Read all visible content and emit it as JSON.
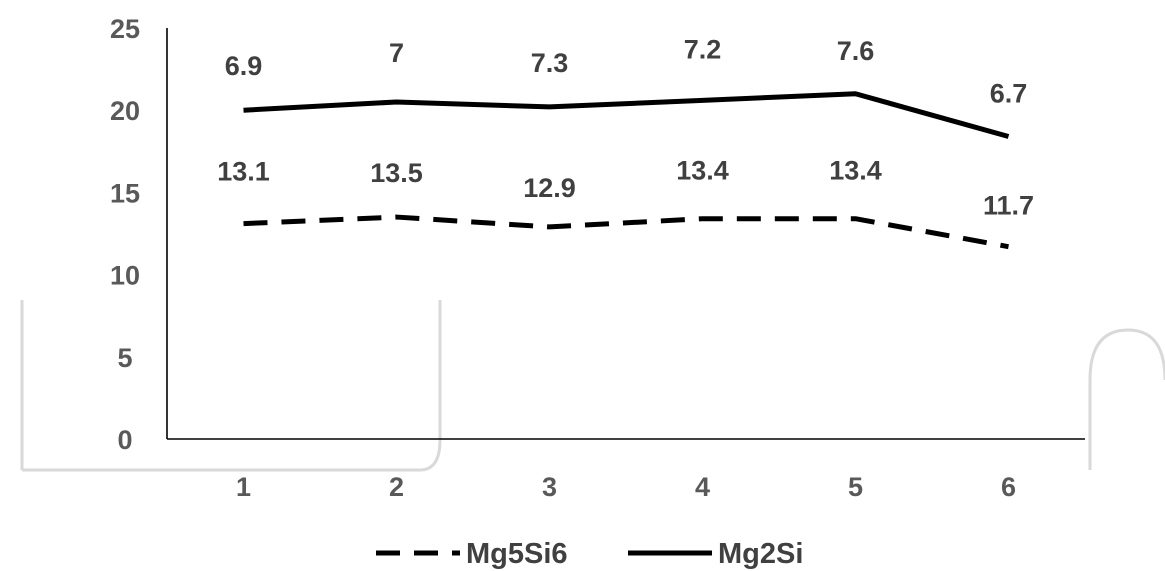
{
  "chart_data": {
    "type": "line",
    "title": "",
    "xlabel": "",
    "ylabel": "",
    "categories": [
      "1",
      "2",
      "3",
      "4",
      "5",
      "6"
    ],
    "ylim": [
      0,
      25
    ],
    "yticks": [
      0,
      5,
      10,
      15,
      20,
      25
    ],
    "grid": false,
    "legend_position": "bottom",
    "series": [
      {
        "name": "Mg5Si6",
        "style": "dashed",
        "color": "#000000",
        "values": [
          13.1,
          13.5,
          12.9,
          13.4,
          13.4,
          11.7
        ],
        "labels": [
          "13.1",
          "13.5",
          "12.9",
          "13.4",
          "13.4",
          "11.7"
        ]
      },
      {
        "name": "Mg2Si",
        "style": "solid",
        "color": "#000000",
        "values": [
          20.0,
          20.5,
          20.2,
          20.6,
          21.0,
          18.4
        ],
        "labels": [
          "6.9",
          "7",
          "7.3",
          "7.2",
          "7.6",
          "6.7"
        ]
      }
    ]
  }
}
